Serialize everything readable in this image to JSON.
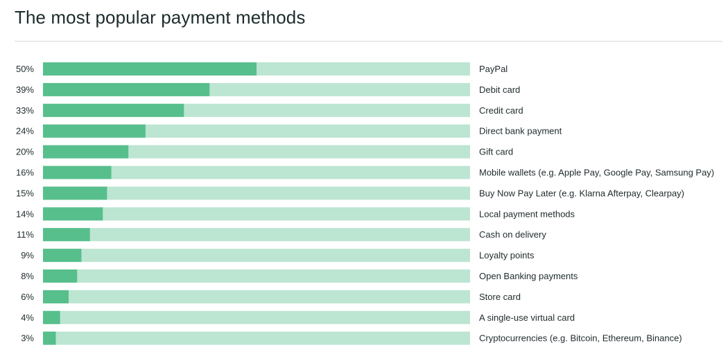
{
  "title": "The most popular payment methods",
  "colors": {
    "bar_fill": "#57bf8c",
    "bar_track": "#bce5d2",
    "text": "#1f2a2b",
    "divider": "#d6d9d8"
  },
  "chart_data": {
    "type": "bar",
    "orientation": "horizontal",
    "title": "The most popular payment methods",
    "xlim": [
      0,
      100
    ],
    "grid": false,
    "categories": [
      "PayPal",
      "Debit card",
      "Credit card",
      "Direct bank payment",
      "Gift card",
      "Mobile wallets (e.g. Apple Pay, Google Pay, Samsung Pay)",
      "Buy Now Pay Later (e.g. Klarna Afterpay, Clearpay)",
      "Local payment methods",
      "Cash on delivery",
      "Loyalty points",
      "Open Banking payments",
      "Store card",
      "A single-use virtual card",
      "Cryptocurrencies (e.g. Bitcoin, Ethereum, Binance)"
    ],
    "values": [
      50,
      39,
      33,
      24,
      20,
      16,
      15,
      14,
      11,
      9,
      8,
      6,
      4,
      3
    ],
    "value_labels": [
      "50%",
      "39%",
      "33%",
      "24%",
      "20%",
      "16%",
      "15%",
      "14%",
      "11%",
      "9%",
      "8%",
      "6%",
      "4%",
      "3%"
    ]
  }
}
